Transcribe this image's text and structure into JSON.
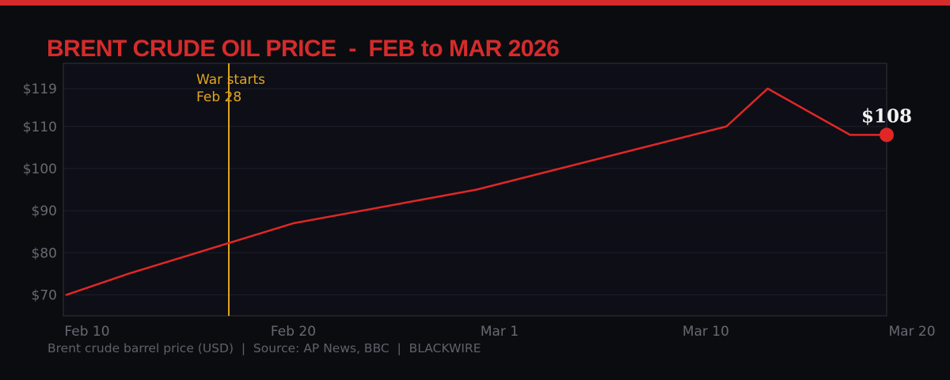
{
  "page": {
    "title": "BRENT CRUDE OIL PRICE  -  FEB to MAR 2026",
    "footer": "Brent crude barrel price (USD)  |  Source: AP News, BBC  |  BLACKWIRE"
  },
  "colors": {
    "accent_red": "#d62b2b",
    "line_red": "#e12726",
    "annotation_gold": "#e2a51f",
    "tick_grey": "#686872",
    "grid": "#1e1f2a",
    "spine": "#31323d",
    "plot_bg": "#0d0e16",
    "page_bg": "#0b0c10",
    "end_label_white": "#f2f2f2"
  },
  "chart_data": {
    "type": "line",
    "title": "BRENT CRUDE OIL PRICE - FEB to MAR 2026",
    "xlabel": "",
    "ylabel": "Brent crude barrel price (USD)",
    "ylim": [
      65,
      125
    ],
    "grid": "horizontal",
    "series": [
      {
        "name": "Brent crude barrel price (USD)",
        "points": [
          {
            "date": "Feb 9",
            "value": 70
          },
          {
            "date": "Feb 12",
            "value": 75
          },
          {
            "date": "Feb 20",
            "value": 87
          },
          {
            "date": "Feb 28",
            "value": 95
          },
          {
            "date": "Mar 11",
            "value": 110
          },
          {
            "date": "Mar 13",
            "value": 119
          },
          {
            "date": "Mar 17",
            "value": 108
          },
          {
            "date": "Mar 19",
            "value": 108
          }
        ]
      }
    ],
    "x_ticks": [
      {
        "label": "Feb 10",
        "day": 10
      },
      {
        "label": "Feb 20",
        "day": 20
      },
      {
        "label": "Mar 1",
        "day": 29
      },
      {
        "label": "Mar 10",
        "day": 38
      },
      {
        "label": "Mar 20",
        "day": 48
      }
    ],
    "y_ticks": [
      {
        "label": "$119",
        "value": 119
      },
      {
        "label": "$110",
        "value": 110
      },
      {
        "label": "$100",
        "value": 100
      },
      {
        "label": "$90",
        "value": 90
      },
      {
        "label": "$80",
        "value": 80
      },
      {
        "label": "$70",
        "value": 70
      }
    ],
    "end_point_label": "$108",
    "annotation": {
      "line1": "War starts",
      "line2": "Feb 28",
      "x_frac": 0.201
    }
  }
}
